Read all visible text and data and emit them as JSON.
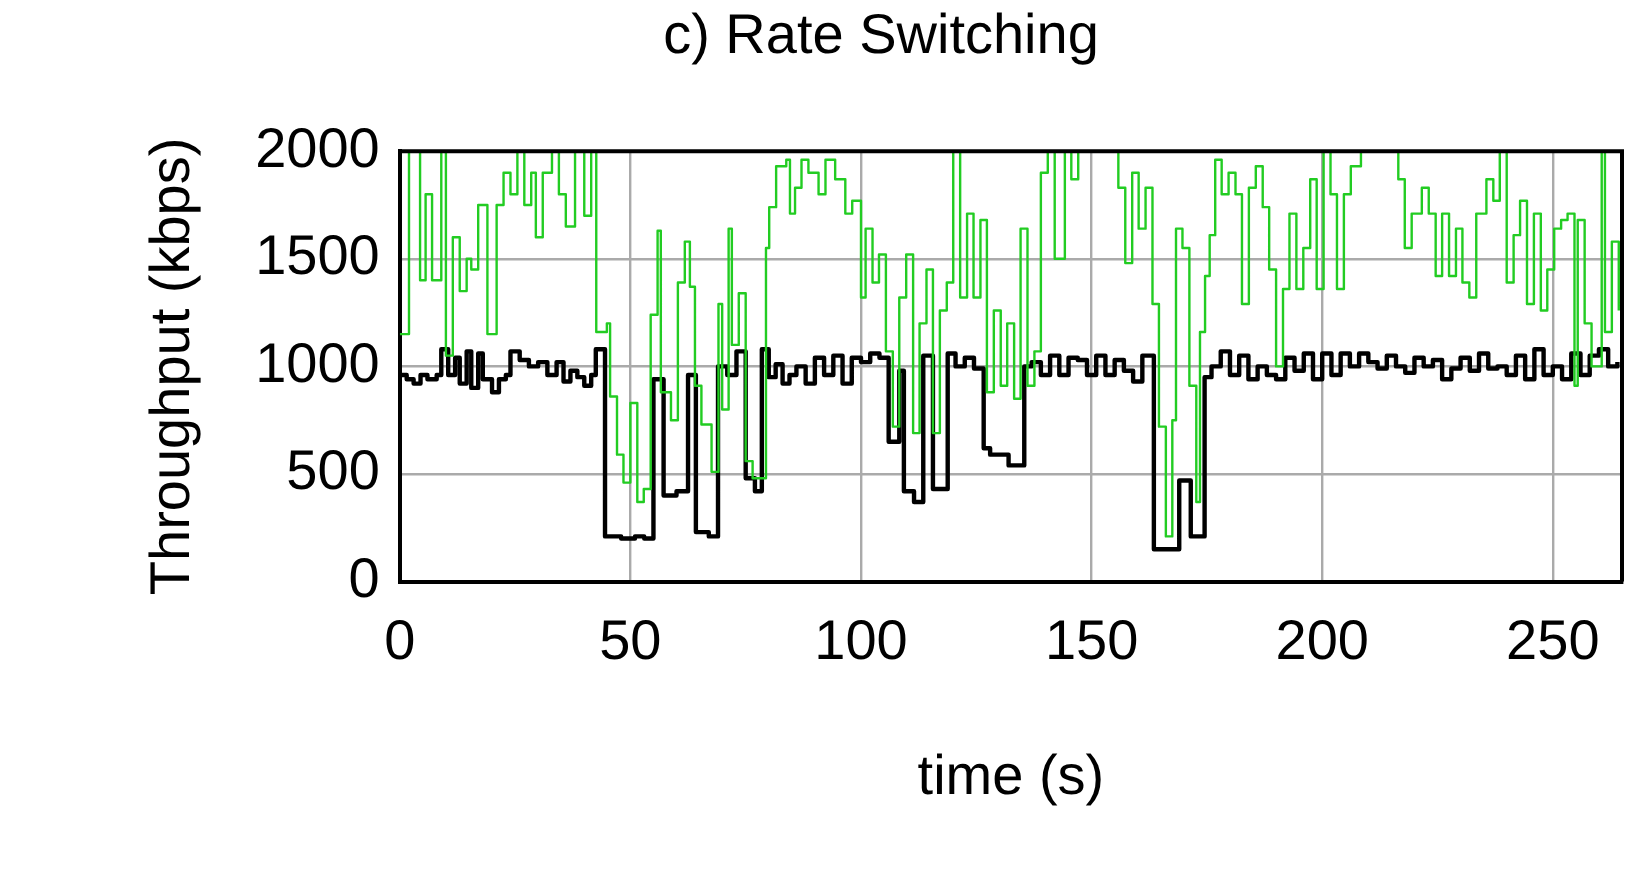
{
  "chart_data": {
    "type": "step",
    "title": "c) Rate Switching",
    "xlabel": "time (s)",
    "ylabel": "Throughput (kbps)",
    "xlim": [
      0,
      265
    ],
    "xticks": [
      0,
      50,
      100,
      150,
      200,
      250
    ],
    "ylim": [
      0,
      2000
    ],
    "yticks": [
      0,
      500,
      1000,
      1500,
      2000
    ],
    "grid": true,
    "legend": false,
    "series": [
      {
        "color": "#22cc22",
        "x": [
          0,
          2,
          4.4,
          5.6,
          7,
          9,
          10,
          11.5,
          13,
          14.5,
          15.5,
          17,
          19,
          21,
          22.5,
          24,
          25.5,
          27,
          28.5,
          29.5,
          31,
          33,
          34.5,
          36,
          38,
          40,
          41.5,
          42.6,
          44.9,
          45.6,
          47.1,
          48.5,
          50,
          51.5,
          52.9,
          54.4,
          55.9,
          56.6,
          58.8,
          60.3,
          61.8,
          62.9,
          64,
          65.4,
          67.6,
          69.1,
          69.9,
          71.3,
          72,
          73.5,
          75,
          76.5,
          79.4,
          80.1,
          81.6,
          83.8,
          84.6,
          85.7,
          87.1,
          88.6,
          90.8,
          92.3,
          94.4,
          96.6,
          98.1,
          100,
          101,
          102.5,
          103.9,
          105.4,
          106.9,
          108.3,
          109.8,
          111.3,
          112.7,
          114.2,
          115.6,
          117.1,
          118.6,
          120,
          121.5,
          123,
          124.4,
          125.9,
          127.3,
          128.8,
          130.3,
          131.7,
          133.2,
          134.6,
          136.1,
          137.6,
          139,
          140.5,
          142,
          144.2,
          145.6,
          147.1,
          155.8,
          157.3,
          158.8,
          160.2,
          161.7,
          163.2,
          164.6,
          166.1,
          167.5,
          168.3,
          169.7,
          171.2,
          172.7,
          173.5,
          174.6,
          175.6,
          176.8,
          178.2,
          179.7,
          181.2,
          182.6,
          184.1,
          185.6,
          187.1,
          188.5,
          190,
          191.5,
          192.9,
          194.4,
          195.9,
          197.4,
          198.8,
          200.3,
          201.8,
          203.2,
          204.7,
          206.2,
          208.4,
          216.5,
          217.9,
          219.4,
          221.6,
          223.1,
          224.6,
          226,
          227.5,
          229,
          230.4,
          231.9,
          233.4,
          235.6,
          237.1,
          238.5,
          240,
          241.5,
          242.9,
          244.4,
          245.9,
          247.4,
          248.8,
          250.3,
          251.8,
          253.2,
          254.7,
          255.4,
          256.9,
          258.4,
          260.6,
          261.3,
          262.8,
          264.3
        ],
        "values": [
          1150,
          2000,
          1400,
          1800,
          1400,
          2000,
          1050,
          1600,
          1350,
          1500,
          1450,
          1750,
          1150,
          1750,
          1900,
          1800,
          2000,
          1750,
          1900,
          1600,
          1900,
          2000,
          1800,
          1650,
          2000,
          1700,
          2000,
          1160,
          1200,
          860,
          590,
          460,
          830,
          370,
          430,
          1240,
          1630,
          880,
          750,
          1390,
          1580,
          1370,
          910,
          730,
          510,
          1290,
          800,
          1640,
          1100,
          1340,
          560,
          480,
          1550,
          1740,
          1930,
          1960,
          1710,
          1830,
          1960,
          1900,
          1800,
          1960,
          1870,
          1710,
          1770,
          1320,
          1640,
          1390,
          1520,
          1070,
          720,
          1320,
          1520,
          690,
          1200,
          1450,
          690,
          1260,
          1390,
          2000,
          1320,
          1710,
          1320,
          1680,
          880,
          1260,
          910,
          1200,
          850,
          1640,
          910,
          1070,
          1900,
          2000,
          1500,
          2000,
          1870,
          2000,
          1830,
          1480,
          1900,
          1640,
          1830,
          1290,
          720,
          210,
          750,
          1640,
          1550,
          910,
          370,
          1160,
          1420,
          1610,
          1960,
          1800,
          1900,
          1800,
          1290,
          1830,
          1930,
          1740,
          1450,
          1000,
          1360,
          1710,
          1360,
          1550,
          1870,
          1360,
          2000,
          1800,
          1360,
          1800,
          1930,
          2000,
          1870,
          1550,
          1710,
          1830,
          1710,
          1420,
          1710,
          1420,
          1640,
          1390,
          1320,
          1710,
          1870,
          1770,
          2000,
          1390,
          1610,
          1770,
          1290,
          1710,
          1260,
          1450,
          1640,
          1680,
          1710,
          910,
          1680,
          1200,
          1000,
          2000,
          1160,
          1580,
          1260
        ]
      },
      {
        "color": "#000000",
        "x": [
          0,
          1.5,
          3,
          4.5,
          6,
          8,
          9,
          10.5,
          12,
          13,
          14.5,
          15.5,
          17,
          18,
          20,
          21.5,
          23,
          24,
          26,
          28,
          30,
          32,
          34,
          35.5,
          37,
          38.5,
          40,
          41.5,
          42.5,
          44.5,
          48,
          51,
          53,
          55,
          57.2,
          60,
          62.5,
          64.2,
          67,
          69,
          71,
          73,
          75,
          77,
          78.5,
          80,
          81.5,
          83,
          84.5,
          86,
          88,
          90,
          92,
          94,
          96,
          98,
          100,
          102,
          104,
          106,
          108.3,
          109.3,
          111.5,
          113.5,
          115.6,
          118.8,
          120.5,
          122.5,
          124.5,
          126.6,
          128,
          132,
          135.4,
          137,
          139,
          141,
          143,
          145,
          147,
          149,
          151,
          153,
          155,
          157,
          159,
          161,
          163.5,
          169,
          171.5,
          174.5,
          176,
          178,
          180,
          182,
          184,
          186,
          188,
          190,
          192,
          194,
          196,
          198,
          200,
          202,
          204,
          206,
          208,
          210,
          212,
          214,
          216,
          218,
          220,
          222,
          224,
          226,
          228,
          230,
          232,
          234,
          236,
          238,
          240,
          242,
          244,
          246,
          248,
          250,
          252,
          254,
          256,
          258,
          260,
          262,
          264
        ],
        "values": [
          960,
          940,
          920,
          960,
          940,
          960,
          1080,
          960,
          1040,
          920,
          1070,
          900,
          1060,
          940,
          880,
          940,
          960,
          1070,
          1030,
          1000,
          1020,
          960,
          1020,
          930,
          980,
          950,
          910,
          960,
          1080,
          210,
          200,
          210,
          200,
          940,
          400,
          420,
          960,
          230,
          210,
          1000,
          960,
          1070,
          480,
          420,
          1080,
          950,
          1010,
          920,
          960,
          1000,
          920,
          1040,
          960,
          1050,
          920,
          1040,
          1020,
          1060,
          1040,
          650,
          980,
          420,
          370,
          1050,
          430,
          1060,
          1000,
          1040,
          990,
          620,
          590,
          540,
          1000,
          1020,
          960,
          1050,
          960,
          1040,
          1030,
          960,
          1050,
          960,
          1030,
          980,
          930,
          1050,
          150,
          470,
          210,
          950,
          1000,
          1070,
          960,
          1050,
          940,
          1000,
          960,
          940,
          1040,
          980,
          1060,
          940,
          1060,
          960,
          1060,
          1000,
          1060,
          1020,
          990,
          1050,
          1000,
          970,
          1040,
          1000,
          1030,
          940,
          990,
          1040,
          980,
          1060,
          990,
          1000,
          960,
          1050,
          940,
          1080,
          960,
          1000,
          940,
          1060,
          960,
          1050,
          1080,
          1000,
          1020
        ]
      }
    ]
  }
}
